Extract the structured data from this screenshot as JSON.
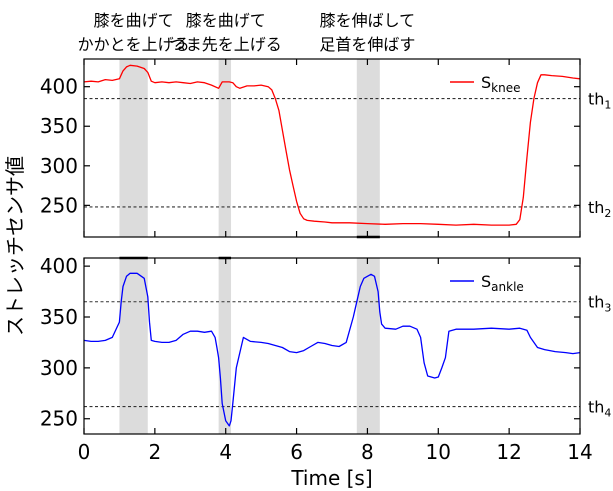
{
  "chart_data": {
    "type": "line",
    "xlabel": "Time [s]",
    "ylabel": "ストレッチセンサ値",
    "xlim": [
      0,
      14
    ],
    "x_ticks": [
      0,
      2,
      4,
      6,
      8,
      10,
      12,
      14
    ],
    "shaded_intervals": [
      [
        1.0,
        1.8
      ],
      [
        3.8,
        4.15
      ],
      [
        7.7,
        8.35
      ]
    ],
    "annotations": [
      {
        "lines": [
          "膝を曲げて",
          "かかとを上げる"
        ],
        "x": 1.4
      },
      {
        "lines": [
          "膝を曲げて",
          "つま先を上げる"
        ],
        "x": 4.0
      },
      {
        "lines": [
          "膝を伸ばして",
          "足首を伸ばす"
        ],
        "x": 8.0
      }
    ],
    "panels": [
      {
        "name": "knee",
        "ylim": [
          210,
          435
        ],
        "y_ticks": [
          250,
          300,
          350,
          400
        ],
        "thresholds": [
          {
            "label": "th",
            "sub": "1",
            "value": 385
          },
          {
            "label": "th",
            "sub": "2",
            "value": 248
          }
        ],
        "series": {
          "name": "S",
          "sub": "knee",
          "color": "#ff0000",
          "x": [
            0,
            0.2,
            0.4,
            0.6,
            0.8,
            1.0,
            1.1,
            1.2,
            1.3,
            1.5,
            1.7,
            1.8,
            1.9,
            2.0,
            2.2,
            2.4,
            2.6,
            2.8,
            3.0,
            3.2,
            3.4,
            3.6,
            3.8,
            3.9,
            4.0,
            4.1,
            4.2,
            4.3,
            4.4,
            4.6,
            4.8,
            5.0,
            5.2,
            5.3,
            5.4,
            5.5,
            5.6,
            5.7,
            5.8,
            5.9,
            6.0,
            6.1,
            6.2,
            6.3,
            6.5,
            6.8,
            7.0,
            7.5,
            8.0,
            8.5,
            9.0,
            9.5,
            10.0,
            10.5,
            11.0,
            11.5,
            12.0,
            12.2,
            12.3,
            12.4,
            12.5,
            12.6,
            12.7,
            12.8,
            12.9,
            13.0,
            13.2,
            13.5,
            13.8,
            14.0
          ],
          "y": [
            406,
            407,
            406,
            409,
            408,
            410,
            420,
            425,
            427,
            426,
            423,
            418,
            407,
            405,
            406,
            405,
            406,
            405,
            404,
            406,
            405,
            402,
            398,
            406,
            406,
            406,
            405,
            400,
            398,
            401,
            401,
            402,
            400,
            396,
            385,
            370,
            345,
            320,
            295,
            275,
            255,
            240,
            233,
            231,
            230,
            229,
            228,
            228,
            227,
            226,
            227,
            227,
            226,
            225,
            226,
            225,
            225,
            226,
            232,
            260,
            310,
            355,
            385,
            405,
            415,
            415,
            414,
            413,
            411,
            410
          ]
        }
      },
      {
        "name": "ankle",
        "ylim": [
          235,
          408
        ],
        "y_ticks": [
          250,
          300,
          350,
          400
        ],
        "thresholds": [
          {
            "label": "th",
            "sub": "3",
            "value": 365
          },
          {
            "label": "th",
            "sub": "4",
            "value": 262
          }
        ],
        "series": {
          "name": "S",
          "sub": "ankle",
          "color": "#0000ff",
          "x": [
            0,
            0.2,
            0.4,
            0.6,
            0.8,
            1.0,
            1.05,
            1.1,
            1.2,
            1.3,
            1.5,
            1.7,
            1.8,
            1.85,
            1.9,
            2.0,
            2.2,
            2.4,
            2.6,
            2.8,
            3.0,
            3.2,
            3.4,
            3.6,
            3.7,
            3.75,
            3.8,
            3.85,
            3.9,
            4.0,
            4.1,
            4.15,
            4.2,
            4.3,
            4.5,
            4.7,
            5.0,
            5.2,
            5.4,
            5.6,
            5.8,
            6.0,
            6.2,
            6.4,
            6.6,
            6.8,
            7.0,
            7.2,
            7.4,
            7.6,
            7.7,
            7.8,
            7.9,
            8.0,
            8.1,
            8.2,
            8.3,
            8.35,
            8.4,
            8.5,
            8.8,
            9.0,
            9.2,
            9.4,
            9.5,
            9.6,
            9.7,
            9.9,
            10.0,
            10.1,
            10.2,
            10.3,
            10.5,
            11.0,
            11.5,
            12.0,
            12.3,
            12.5,
            12.6,
            12.8,
            13.0,
            13.3,
            13.6,
            13.8,
            14.0
          ],
          "y": [
            327,
            326,
            326,
            327,
            330,
            345,
            365,
            380,
            390,
            393,
            393,
            388,
            370,
            345,
            327,
            326,
            325,
            325,
            327,
            333,
            336,
            336,
            335,
            336,
            330,
            320,
            310,
            290,
            265,
            248,
            243,
            248,
            265,
            300,
            330,
            326,
            325,
            324,
            322,
            320,
            316,
            315,
            317,
            321,
            325,
            324,
            322,
            321,
            325,
            350,
            365,
            380,
            388,
            390,
            392,
            390,
            375,
            355,
            343,
            339,
            338,
            341,
            341,
            338,
            330,
            305,
            292,
            290,
            291,
            300,
            310,
            336,
            338,
            338,
            339,
            338,
            339,
            337,
            330,
            320,
            318,
            316,
            315,
            314,
            315
          ]
        }
      }
    ]
  }
}
